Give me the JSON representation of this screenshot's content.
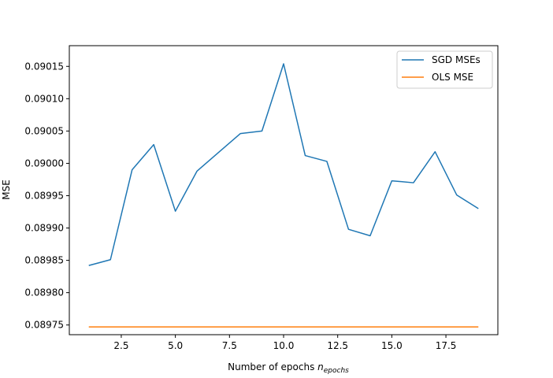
{
  "chart_data": {
    "type": "line",
    "title": "",
    "xlabel": "Number of epochs ",
    "xlabel_math": "n",
    "xlabel_sub": "epochs",
    "ylabel": "MSE",
    "xlim": [
      0.1,
      19.9
    ],
    "ylim": [
      0.089735,
      0.090182
    ],
    "xticks": [
      2.5,
      5.0,
      7.5,
      10.0,
      12.5,
      15.0,
      17.5
    ],
    "xtick_labels": [
      "2.5",
      "5.0",
      "7.5",
      "10.0",
      "12.5",
      "15.0",
      "17.5"
    ],
    "yticks": [
      0.08975,
      0.0898,
      0.08985,
      0.0899,
      0.08995,
      0.09,
      0.09005,
      0.0901,
      0.09015
    ],
    "ytick_labels": [
      "0.08975",
      "0.08980",
      "0.08985",
      "0.08990",
      "0.08995",
      "0.09000",
      "0.09005",
      "0.09010",
      "0.09015"
    ],
    "legend_position": "top-right",
    "grid": false,
    "series": [
      {
        "name": "SGD MSEs",
        "color": "#1f77b4",
        "x": [
          1,
          2,
          3,
          4,
          5,
          6,
          7,
          8,
          9,
          10,
          11,
          12,
          13,
          14,
          15,
          16,
          17,
          18,
          19
        ],
        "values": [
          0.089842,
          0.089851,
          0.08999,
          0.090029,
          0.089926,
          0.089988,
          0.090017,
          0.090046,
          0.09005,
          0.090154,
          0.090012,
          0.090003,
          0.089898,
          0.089888,
          0.089973,
          0.08997,
          0.090018,
          0.089951,
          0.08993
        ]
      },
      {
        "name": "OLS MSE",
        "color": "#ff7f0e",
        "x": [
          1,
          19
        ],
        "values": [
          0.089747,
          0.089747
        ]
      }
    ]
  }
}
